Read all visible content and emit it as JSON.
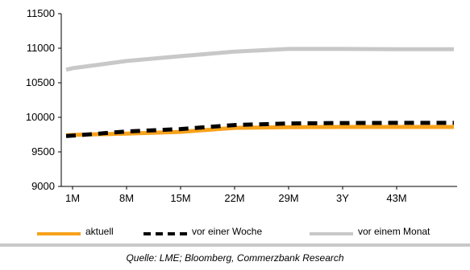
{
  "chart_data": {
    "type": "line",
    "title": "",
    "xlabel": "",
    "ylabel": "",
    "categories": [
      "1M",
      "8M",
      "15M",
      "22M",
      "29M",
      "3Y",
      "43M"
    ],
    "x_ticks": [
      "1M",
      "8M",
      "15M",
      "22M",
      "29M",
      "3Y",
      "43M"
    ],
    "y_ticks": [
      9000,
      9500,
      10000,
      10500,
      11000,
      11500
    ],
    "ylim": [
      9000,
      11500
    ],
    "grid": false,
    "legend_position": "bottom",
    "series": [
      {
        "name": "aktuell",
        "color": "#f7a21b",
        "style": "solid",
        "values": [
          9745,
          9765,
          9790,
          9848,
          9858,
          9860,
          9860
        ]
      },
      {
        "name": "vor einer Woche",
        "color": "#000000",
        "style": "dashed",
        "values": [
          9735,
          9795,
          9830,
          9888,
          9912,
          9918,
          9920
        ]
      },
      {
        "name": "vor einem Monat",
        "color": "#c8c8c8",
        "style": "solid",
        "values": [
          10710,
          10815,
          10885,
          10950,
          10990,
          10990,
          10985
        ]
      }
    ]
  },
  "source": "Quelle: LME; Bloomberg, Commerzbank Research"
}
